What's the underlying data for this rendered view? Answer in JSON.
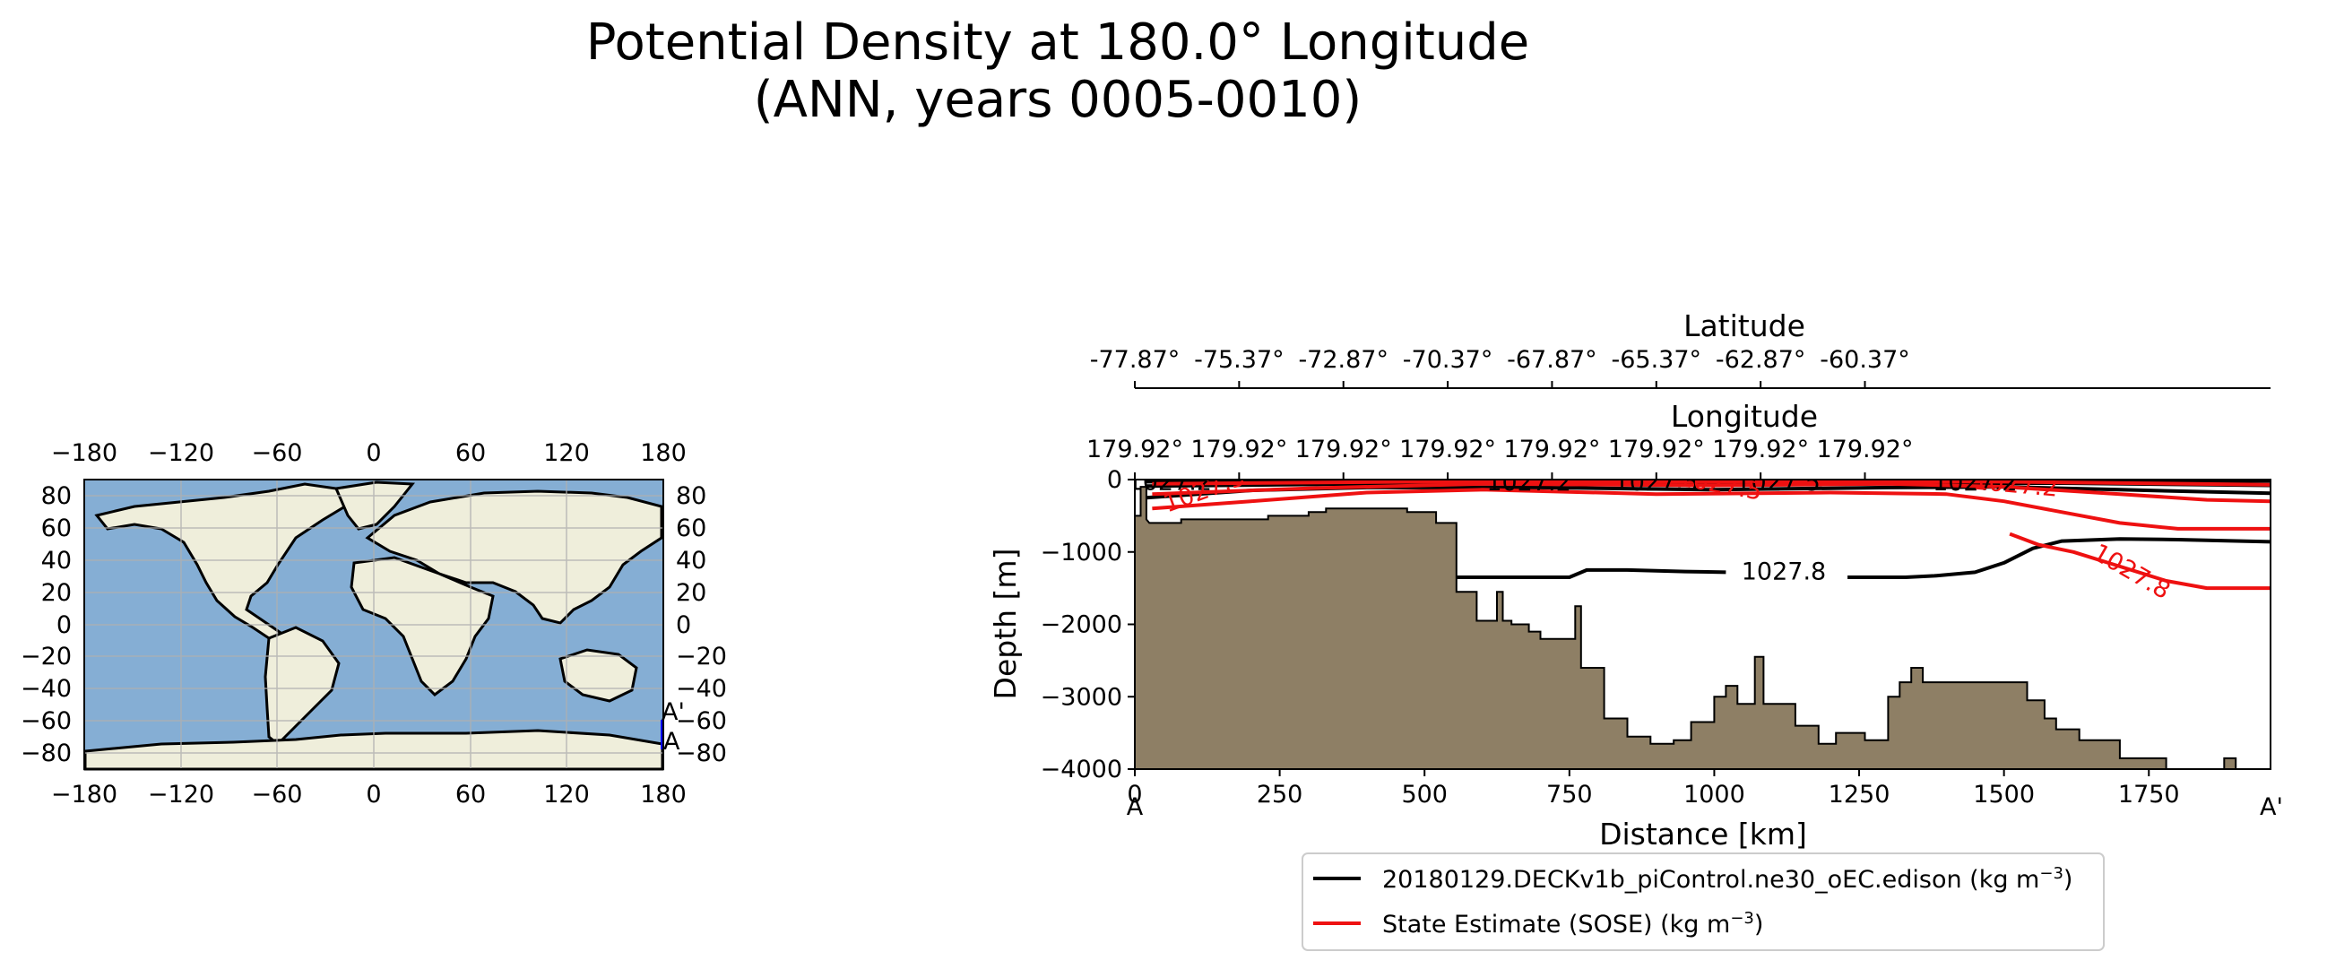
{
  "title": {
    "line1": "Potential Density at 180.0° Longitude",
    "line2": "(ANN, years 0005-0010)"
  },
  "colors": {
    "ocean": "#85aed4",
    "land": "#efeedb",
    "bathymetry": "#8e7f65",
    "model": "#000000",
    "obs": "#ee1111",
    "transect": "#0000ff",
    "grid": "#b0b0b0"
  },
  "map": {
    "x_ticks": [
      "−180",
      "−120",
      "−60",
      "0",
      "60",
      "120",
      "180"
    ],
    "y_ticks": [
      "80",
      "60",
      "40",
      "20",
      "0",
      "−20",
      "−40",
      "−60",
      "−80"
    ],
    "y_ticks_right": [
      "80",
      "60",
      "40",
      "20",
      "0",
      "−20",
      "−40",
      "−60",
      "−80"
    ],
    "xlim": [
      -180,
      180
    ],
    "ylim": [
      -90,
      90
    ],
    "transect": {
      "lon": 180.0,
      "lat_start": -77.87,
      "lat_end": -60.37
    },
    "label_start": "A",
    "label_end": "A'"
  },
  "chart_data": {
    "type": "line",
    "title": "Potential Density at 180.0° Longitude",
    "xlabel": "Distance [km]",
    "ylabel": "Depth [m]",
    "xlim": [
      0,
      1960
    ],
    "ylim": [
      -4000,
      0
    ],
    "x_ticks": [
      0,
      250,
      500,
      750,
      1000,
      1250,
      1500,
      1750
    ],
    "y_ticks": [
      0,
      -1000,
      -2000,
      -3000,
      -4000
    ],
    "x_tick_labels": [
      "0",
      "250",
      "500",
      "750",
      "1000",
      "1250",
      "1500",
      "1750"
    ],
    "y_tick_labels": [
      "0",
      "−1000",
      "−2000",
      "−3000",
      "−4000"
    ],
    "section_start_label": "A",
    "section_end_label": "A'",
    "latitude_axis": {
      "label": "Latitude",
      "ticks": [
        "-77.87°",
        "-75.37°",
        "-72.87°",
        "-70.37°",
        "-67.87°",
        "-65.37°",
        "-62.87°",
        "-60.37°"
      ]
    },
    "longitude_axis": {
      "label": "Longitude",
      "ticks": [
        "179.92°",
        "179.92°",
        "179.92°",
        "179.92°",
        "179.92°",
        "179.92°",
        "179.92°",
        "179.92°"
      ]
    },
    "bathymetry": [
      [
        0,
        -500
      ],
      [
        10,
        -500
      ],
      [
        10,
        -100
      ],
      [
        20,
        -100
      ],
      [
        20,
        -550
      ],
      [
        25,
        -600
      ],
      [
        80,
        -600
      ],
      [
        80,
        -550
      ],
      [
        230,
        -550
      ],
      [
        230,
        -500
      ],
      [
        300,
        -500
      ],
      [
        300,
        -450
      ],
      [
        330,
        -450
      ],
      [
        330,
        -400
      ],
      [
        470,
        -400
      ],
      [
        470,
        -450
      ],
      [
        520,
        -450
      ],
      [
        520,
        -600
      ],
      [
        555,
        -600
      ],
      [
        555,
        -1550
      ],
      [
        590,
        -1550
      ],
      [
        590,
        -1950
      ],
      [
        625,
        -1950
      ],
      [
        625,
        -1550
      ],
      [
        635,
        -1550
      ],
      [
        635,
        -1950
      ],
      [
        650,
        -1950
      ],
      [
        650,
        -2000
      ],
      [
        680,
        -2000
      ],
      [
        680,
        -2100
      ],
      [
        700,
        -2100
      ],
      [
        700,
        -2200
      ],
      [
        760,
        -2200
      ],
      [
        760,
        -1750
      ],
      [
        770,
        -1750
      ],
      [
        770,
        -2600
      ],
      [
        810,
        -2600
      ],
      [
        810,
        -3300
      ],
      [
        850,
        -3300
      ],
      [
        850,
        -3550
      ],
      [
        890,
        -3550
      ],
      [
        890,
        -3650
      ],
      [
        930,
        -3650
      ],
      [
        930,
        -3600
      ],
      [
        960,
        -3600
      ],
      [
        960,
        -3350
      ],
      [
        1000,
        -3350
      ],
      [
        1000,
        -3000
      ],
      [
        1020,
        -3000
      ],
      [
        1020,
        -2850
      ],
      [
        1040,
        -2850
      ],
      [
        1040,
        -3100
      ],
      [
        1070,
        -3100
      ],
      [
        1070,
        -2450
      ],
      [
        1085,
        -2450
      ],
      [
        1085,
        -3100
      ],
      [
        1140,
        -3100
      ],
      [
        1140,
        -3400
      ],
      [
        1180,
        -3400
      ],
      [
        1180,
        -3650
      ],
      [
        1210,
        -3650
      ],
      [
        1210,
        -3500
      ],
      [
        1260,
        -3500
      ],
      [
        1260,
        -3600
      ],
      [
        1300,
        -3600
      ],
      [
        1300,
        -3000
      ],
      [
        1320,
        -3000
      ],
      [
        1320,
        -2800
      ],
      [
        1340,
        -2800
      ],
      [
        1340,
        -2600
      ],
      [
        1360,
        -2600
      ],
      [
        1360,
        -2800
      ],
      [
        1540,
        -2800
      ],
      [
        1540,
        -3050
      ],
      [
        1570,
        -3050
      ],
      [
        1570,
        -3300
      ],
      [
        1590,
        -3300
      ],
      [
        1590,
        -3450
      ],
      [
        1630,
        -3450
      ],
      [
        1630,
        -3600
      ],
      [
        1700,
        -3600
      ],
      [
        1700,
        -3850
      ],
      [
        1780,
        -3850
      ],
      [
        1780,
        -4000
      ],
      [
        1960,
        -4000
      ]
    ],
    "bathymetry_bump": [
      [
        1880,
        -4000
      ],
      [
        1880,
        -3850
      ],
      [
        1900,
        -3850
      ],
      [
        1900,
        -4000
      ]
    ],
    "series": [
      {
        "name": "20180129.DECKv1b_piControl.ne30_oEC.edison",
        "units": "(kg m⁻³)",
        "color": "#000000",
        "contours": [
          {
            "level": 1027.8,
            "points": [
              [
                555,
                -1350
              ],
              [
                650,
                -1350
              ],
              [
                750,
                -1350
              ],
              [
                780,
                -1250
              ],
              [
                850,
                -1250
              ],
              [
                950,
                -1270
              ],
              [
                1020,
                -1280
              ]
            ]
          },
          {
            "level": 1027.8,
            "points": [
              [
                1230,
                -1350
              ],
              [
                1330,
                -1350
              ],
              [
                1380,
                -1330
              ],
              [
                1450,
                -1280
              ],
              [
                1500,
                -1150
              ],
              [
                1550,
                -950
              ],
              [
                1600,
                -850
              ],
              [
                1700,
                -820
              ],
              [
                1800,
                -830
              ],
              [
                1960,
                -860
              ]
            ]
          },
          {
            "level": 1027.5,
            "points": [
              [
                20,
                -250
              ],
              [
                200,
                -150
              ],
              [
                400,
                -110
              ],
              [
                700,
                -110
              ],
              [
                1000,
                -140
              ],
              [
                1300,
                -110
              ],
              [
                1500,
                -100
              ],
              [
                1700,
                -140
              ],
              [
                1960,
                -190
              ]
            ]
          },
          {
            "level": 1027.2,
            "points": [
              [
                20,
                -90
              ],
              [
                400,
                -60
              ],
              [
                800,
                -60
              ],
              [
                1200,
                -60
              ],
              [
                1600,
                -50
              ],
              [
                1960,
                -80
              ]
            ]
          },
          {
            "level": 1027.0,
            "points": [
              [
                20,
                -30
              ],
              [
                600,
                -20
              ],
              [
                1200,
                -20
              ],
              [
                1960,
                -20
              ]
            ]
          }
        ],
        "contour_labels": [
          {
            "text": "1027.8",
            "x": 1120,
            "y": -1270,
            "angle": 0
          },
          {
            "text": "1027.2",
            "x": 680,
            "y": -40,
            "angle": 0
          },
          {
            "text": "1027.5",
            "x": 900,
            "y": -40,
            "angle": 0
          },
          {
            "text": "1027.5",
            "x": 1110,
            "y": -40,
            "angle": 0
          },
          {
            "text": "1027.2",
            "x": 1450,
            "y": -40,
            "angle": 0
          },
          {
            "text": "1027.2",
            "x": 60,
            "y": -30,
            "angle": 0
          }
        ]
      },
      {
        "name": "State Estimate (SOSE)",
        "units": "(kg m⁻³)",
        "color": "#ee1111",
        "contours": [
          {
            "level": 1027.8,
            "points": [
              [
                1510,
                -750
              ],
              [
                1560,
                -900
              ],
              [
                1620,
                -1000
              ],
              [
                1700,
                -1200
              ],
              [
                1780,
                -1400
              ],
              [
                1850,
                -1500
              ],
              [
                1960,
                -1500
              ]
            ]
          },
          {
            "level": 1027.5,
            "points": [
              [
                30,
                -400
              ],
              [
                200,
                -300
              ],
              [
                400,
                -180
              ],
              [
                600,
                -140
              ],
              [
                900,
                -200
              ],
              [
                1200,
                -180
              ],
              [
                1400,
                -200
              ],
              [
                1500,
                -300
              ],
              [
                1600,
                -450
              ],
              [
                1700,
                -600
              ],
              [
                1800,
                -680
              ],
              [
                1960,
                -680
              ]
            ]
          },
          {
            "level": 1027.2,
            "points": [
              [
                30,
                -200
              ],
              [
                300,
                -120
              ],
              [
                600,
                -60
              ],
              [
                1000,
                -80
              ],
              [
                1300,
                -60
              ],
              [
                1500,
                -100
              ],
              [
                1700,
                -200
              ],
              [
                1850,
                -280
              ],
              [
                1960,
                -300
              ]
            ]
          },
          {
            "level": 1027.0,
            "points": [
              [
                30,
                -60
              ],
              [
                500,
                -30
              ],
              [
                1000,
                -30
              ],
              [
                1500,
                -30
              ],
              [
                1960,
                -70
              ]
            ]
          }
        ],
        "contour_labels": [
          {
            "text": "1027.8",
            "x": 1720,
            "y": -1270,
            "angle": 30
          },
          {
            "text": "1027.5",
            "x": 1010,
            "y": -70,
            "angle": 10
          },
          {
            "text": "1027.5",
            "x": 120,
            "y": -150,
            "angle": -20
          },
          {
            "text": "1027.2",
            "x": 1520,
            "y": -70,
            "angle": 5
          }
        ]
      }
    ]
  },
  "legend": {
    "items": [
      {
        "label": "20180129.DECKv1b_piControl.ne30_oEC.edison (kg m",
        "sup": "−3",
        "tail": ")"
      },
      {
        "label": "State Estimate (SOSE) (kg m",
        "sup": "−3",
        "tail": ")"
      }
    ]
  }
}
